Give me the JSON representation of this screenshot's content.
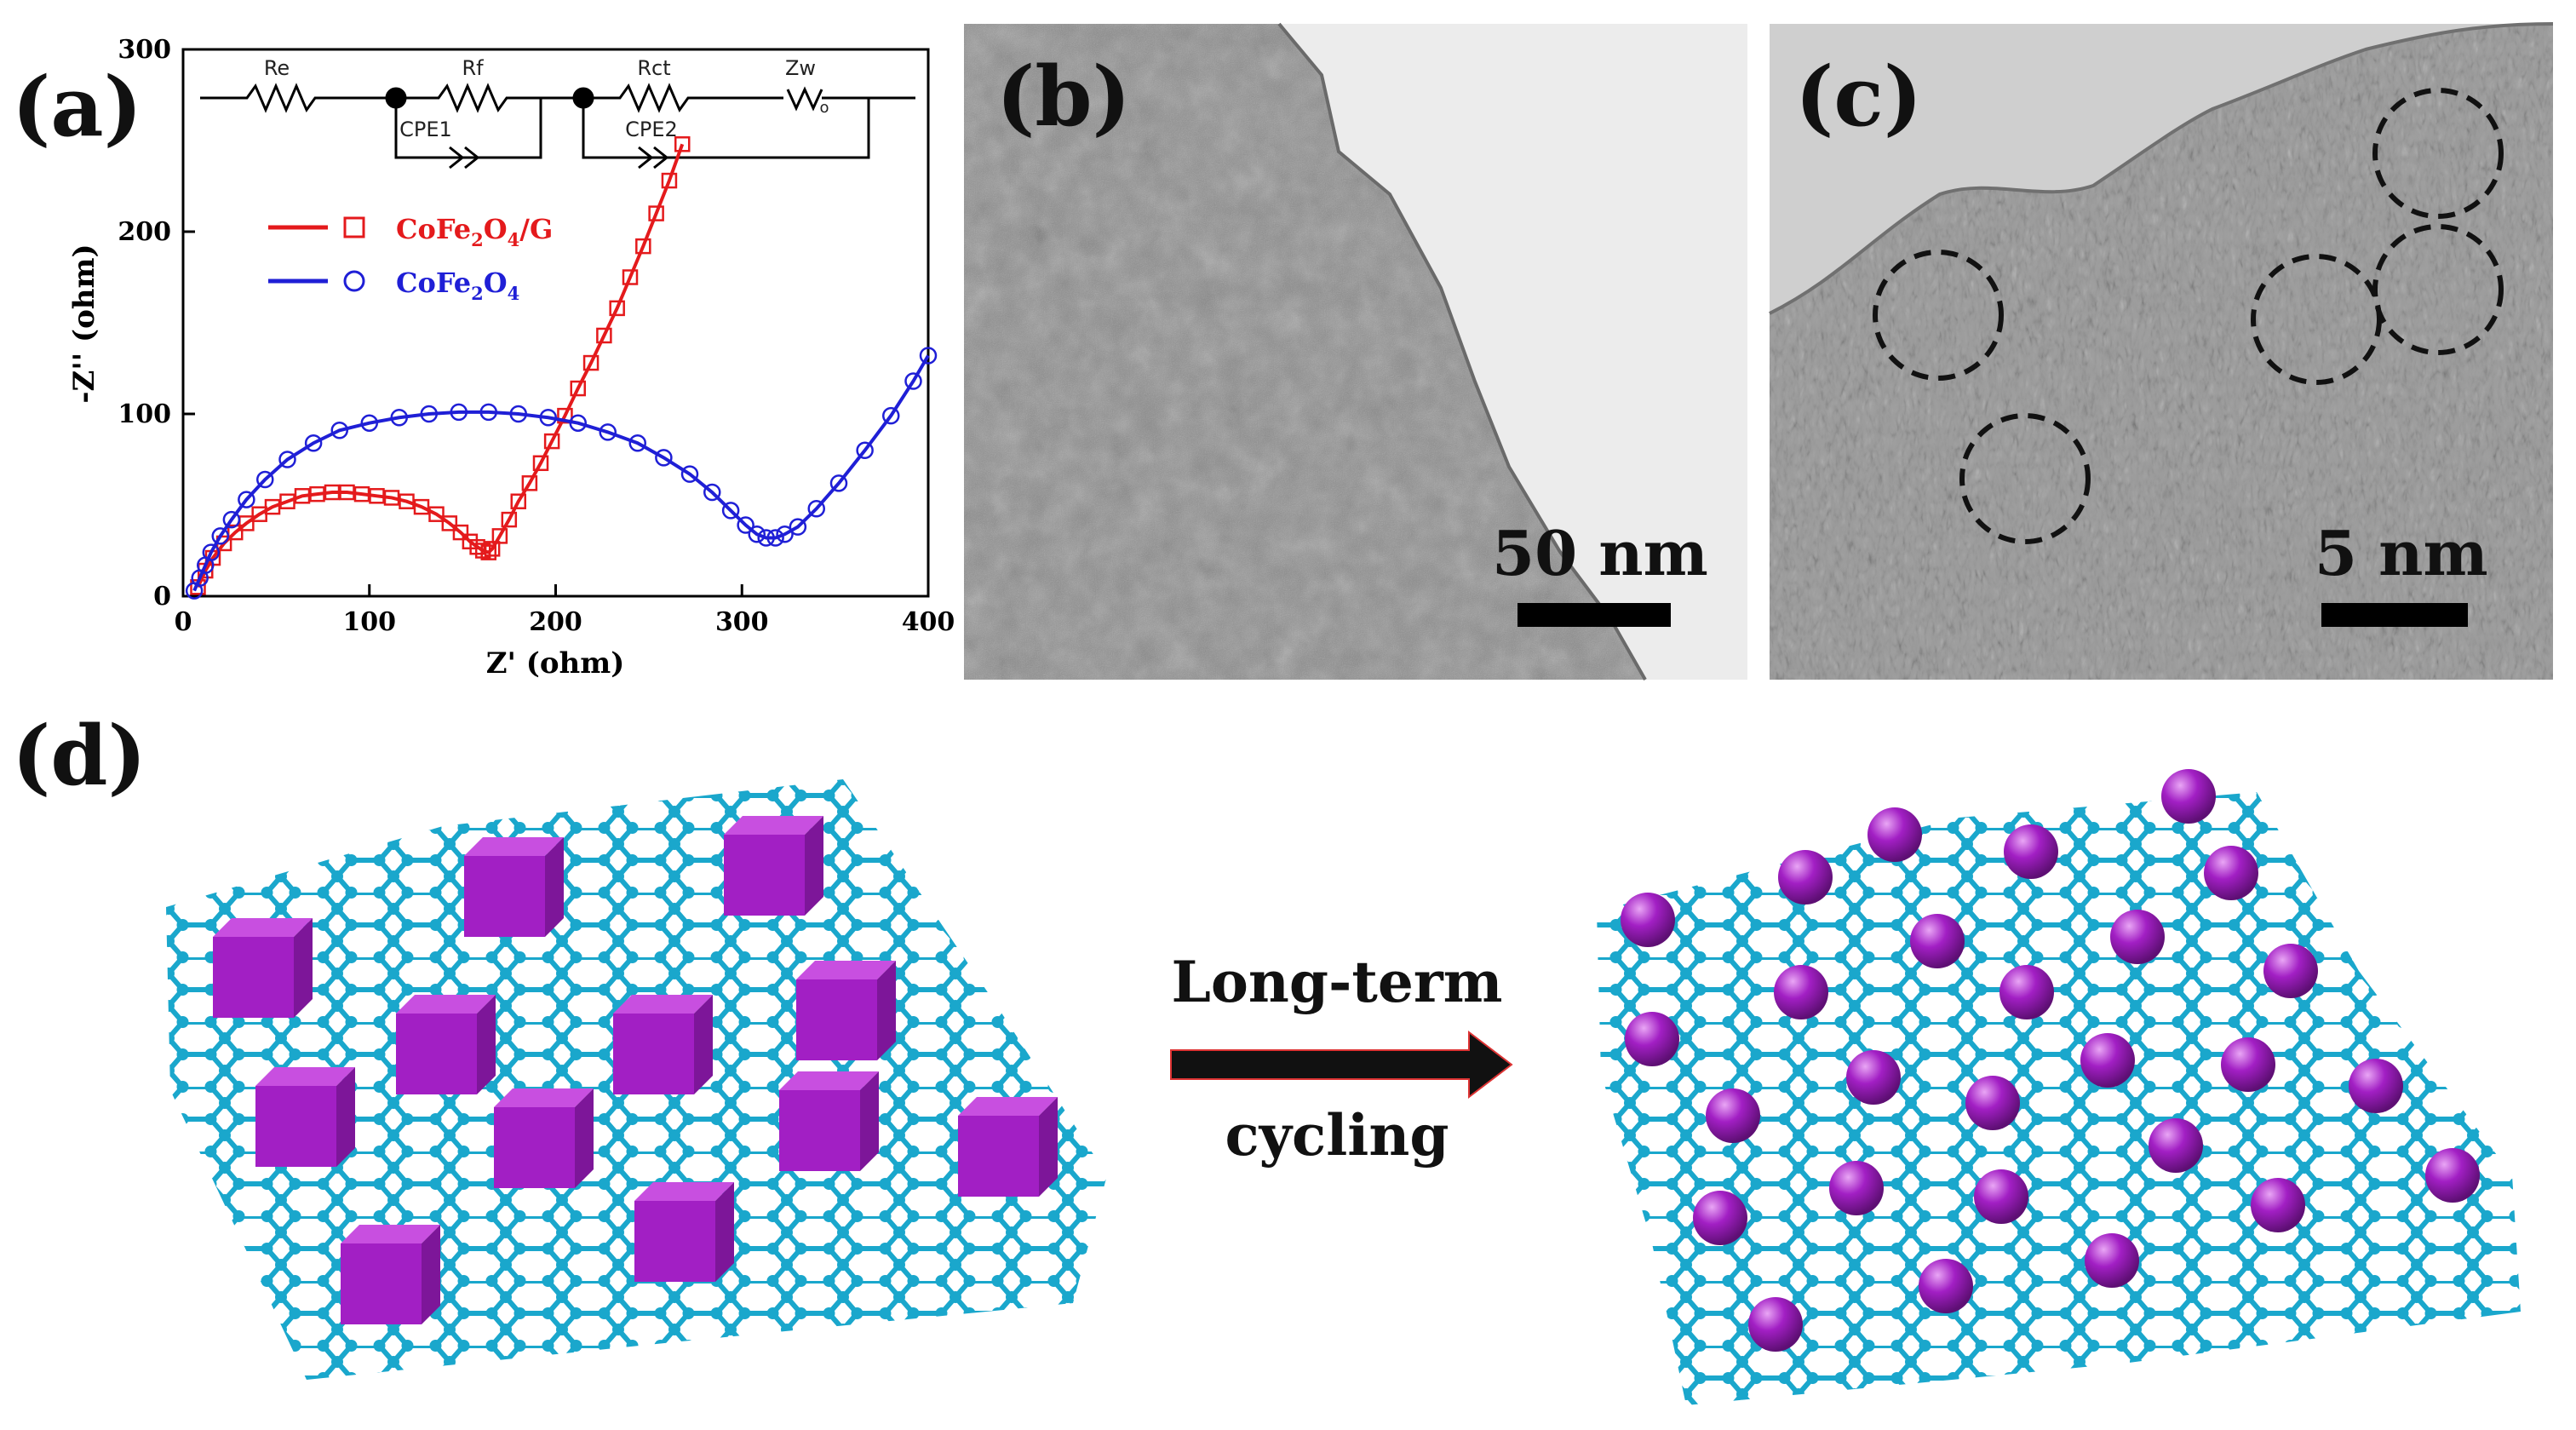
{
  "panels": {
    "a": "(a)",
    "b": "(b)",
    "c": "(c)",
    "d": "(d)"
  },
  "chart_data": {
    "type": "scatter",
    "title": "",
    "xlabel": "Z' (ohm)",
    "ylabel": "-Z'' (ohm)",
    "xlim": [
      0,
      400
    ],
    "ylim": [
      0,
      300
    ],
    "xticks": [
      "0",
      "100",
      "200",
      "300",
      "400"
    ],
    "yticks": [
      "0",
      "100",
      "200",
      "300"
    ],
    "legend_position": "upper-left",
    "grid": false,
    "circuit_labels": [
      "Re",
      "Rf",
      "CPE1",
      "Rct",
      "CPE2",
      "Zw"
    ],
    "circuit_subscript": "o",
    "series": [
      {
        "name": "CoFe2O4/G",
        "label_parts": [
          "CoFe",
          "2",
          "O",
          "4",
          "/G"
        ],
        "color": "#e41a1c",
        "marker": "square",
        "x": [
          8,
          12,
          16,
          22,
          28,
          34,
          41,
          48,
          56,
          64,
          72,
          80,
          88,
          96,
          104,
          112,
          120,
          128,
          136,
          143,
          149,
          154,
          158,
          161,
          164,
          166,
          170,
          175,
          180,
          186,
          192,
          198,
          205,
          212,
          219,
          226,
          233,
          240,
          247,
          254,
          261,
          268
        ],
        "y": [
          5,
          14,
          21,
          29,
          35,
          40,
          45,
          49,
          52,
          55,
          56,
          57,
          57,
          56,
          55,
          54,
          52,
          49,
          45,
          40,
          35,
          30,
          27,
          25,
          24,
          26,
          33,
          42,
          52,
          62,
          73,
          85,
          99,
          114,
          128,
          143,
          158,
          175,
          192,
          210,
          228,
          248
        ]
      },
      {
        "name": "CoFe2O4",
        "label_parts": [
          "CoFe",
          "2",
          "O",
          "4",
          ""
        ],
        "color": "#1f1fd6",
        "marker": "circle",
        "x": [
          6,
          9,
          12,
          15,
          20,
          26,
          34,
          44,
          56,
          70,
          84,
          100,
          116,
          132,
          148,
          164,
          180,
          196,
          212,
          228,
          244,
          258,
          272,
          284,
          294,
          302,
          308,
          313,
          318,
          323,
          330,
          340,
          352,
          366,
          380,
          392,
          400
        ],
        "y": [
          3,
          10,
          17,
          24,
          33,
          42,
          53,
          64,
          75,
          84,
          91,
          95,
          98,
          100,
          101,
          101,
          100,
          98,
          95,
          90,
          84,
          76,
          67,
          57,
          47,
          39,
          34,
          32,
          32,
          34,
          38,
          48,
          62,
          80,
          99,
          118,
          132
        ]
      }
    ]
  },
  "scalebars": {
    "b": "50 nm",
    "c": "5 nm"
  },
  "arrow": {
    "line1": "Long-term",
    "line2": "cycling"
  },
  "colors": {
    "graphene": "#1aa7cc",
    "particle": "#a21fc4"
  }
}
